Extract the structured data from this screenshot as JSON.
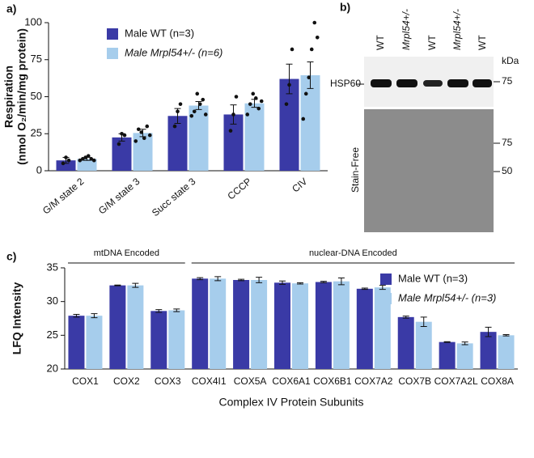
{
  "chart_data": [
    {
      "type": "bar",
      "panel": "a)",
      "ylabel": [
        "Respiration",
        "(nmol O₂/min/mg protein)"
      ],
      "categories": [
        "G/M state 2",
        "G/M state 3",
        "Succ state 3",
        "CCCP",
        "CIV"
      ],
      "ylim": [
        0,
        100
      ],
      "yticks": [
        0,
        25,
        50,
        75,
        100
      ],
      "legend": "upper left",
      "series": [
        {
          "name": "Male WT (n=3)",
          "color": "#3a3aa6",
          "values": [
            7,
            22.5,
            37,
            38,
            62
          ],
          "errors": [
            2,
            2.5,
            5,
            6.5,
            10
          ],
          "points": [
            [
              5,
              9,
              7
            ],
            [
              18,
              25,
              24
            ],
            [
              30,
              40,
              45
            ],
            [
              27,
              38,
              50
            ],
            [
              45,
              58,
              82
            ]
          ]
        },
        {
          "name": "Male Mrpl54+/- (n=6)",
          "color": "#a6cdec",
          "values": [
            8,
            25.5,
            44,
            45.5,
            64.5
          ],
          "errors": [
            1,
            2.5,
            2.7,
            2.7,
            9
          ],
          "points": [
            [
              7,
              8,
              9,
              10,
              8,
              7
            ],
            [
              20,
              28,
              26,
              22,
              30,
              24
            ],
            [
              37,
              40,
              52,
              45,
              48,
              38
            ],
            [
              38,
              45,
              52,
              49,
              42,
              47
            ],
            [
              35,
              52,
              63,
              82,
              100,
              90
            ]
          ]
        }
      ]
    },
    {
      "type": "bar",
      "panel": "c)",
      "ylabel": [
        "LFQ Intensity"
      ],
      "xlabel": "Complex IV Protein Subunits",
      "categories": [
        "COX1",
        "COX2",
        "COX3",
        "COX4I1",
        "COX5A",
        "COX6A1",
        "COX6B1",
        "COX7A2",
        "COX7B",
        "COX7A2L",
        "COX8A"
      ],
      "groups": [
        {
          "label": "mtDNA Encoded",
          "categories": [
            "COX1",
            "COX2",
            "COX3"
          ]
        },
        {
          "label": "nuclear-DNA Encoded",
          "categories": [
            "COX4I1",
            "COX5A",
            "COX6A1",
            "COX6B1",
            "COX7A2",
            "COX7B",
            "COX7A2L",
            "COX8A"
          ]
        }
      ],
      "ylim": [
        20,
        35
      ],
      "yticks": [
        20,
        25,
        30,
        35
      ],
      "legend": "upper right",
      "series": [
        {
          "name": "Male WT (n=3)",
          "color": "#3a3aa6",
          "values": [
            27.9,
            32.4,
            28.6,
            33.4,
            33.2,
            32.8,
            32.9,
            31.9,
            27.7,
            24.0,
            25.5
          ],
          "errors": [
            0.2,
            0.05,
            0.2,
            0.15,
            0.1,
            0.25,
            0.1,
            0.1,
            0.15,
            0.05,
            0.7
          ]
        },
        {
          "name": "Male Mrpl54+/- (n=3)",
          "color": "#a6cdec",
          "values": [
            27.9,
            32.4,
            28.7,
            33.4,
            33.2,
            32.7,
            33.0,
            32.1,
            27.0,
            23.8,
            25.0
          ],
          "errors": [
            0.3,
            0.3,
            0.2,
            0.3,
            0.4,
            0.1,
            0.5,
            0.3,
            0.7,
            0.2,
            0.1
          ]
        }
      ]
    }
  ],
  "blot": {
    "panel": "b)",
    "lanes": [
      "WT",
      "Mrpl54+/-",
      "WT",
      "Mrpl54+/-",
      "WT"
    ],
    "unit": "kDa",
    "protein": "HSP60",
    "loading": "Stain-Free",
    "upper_markers": [
      "75"
    ],
    "lower_markers": [
      "75",
      "50"
    ]
  }
}
